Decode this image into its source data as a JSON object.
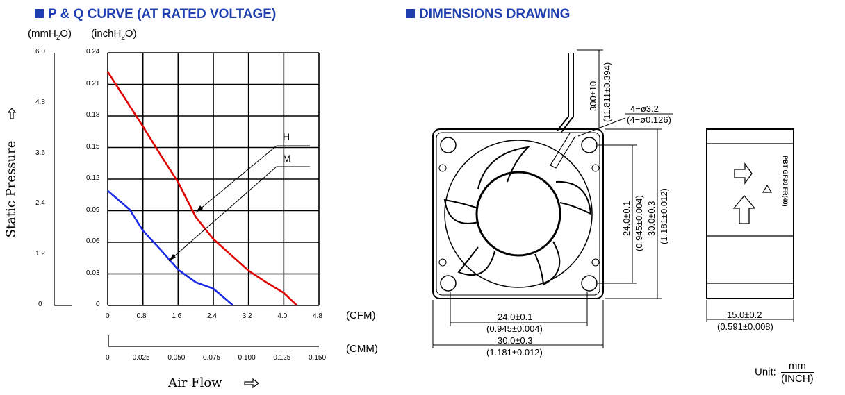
{
  "left_section": {
    "title": "P & Q CURVE (AT RATED VOLTAGE)",
    "unit_mm": "(mmH",
    "unit_mm_tail": "O)",
    "unit_inch": "(inchH",
    "unit_inch_tail": "O)",
    "sub2": "2"
  },
  "right_section": {
    "title": "DIMENSIONS DRAWING"
  },
  "chart_data": {
    "type": "line",
    "title": "P & Q CURVE (AT RATED VOLTAGE)",
    "xlabel": "Air Flow",
    "ylabel": "Static Pressure",
    "x_unit": "(CFM)",
    "x2_unit": "(CMM)",
    "x_ticks": [
      "0",
      "0.8",
      "1.6",
      "2.4",
      "3.2",
      "4.0",
      "4.8"
    ],
    "x2_ticks": [
      "0",
      "0.025",
      "0.050",
      "0.075",
      "0.100",
      "0.125",
      "0.150"
    ],
    "y_inch_ticks": [
      "0",
      "0.03",
      "0.06",
      "0.09",
      "0.12",
      "0.15",
      "0.18",
      "0.21",
      "0.24"
    ],
    "y_mm_ticks": [
      "0",
      "1.2",
      "2.4",
      "3.6",
      "4.8",
      "6.0"
    ],
    "xlim": [
      0,
      4.8
    ],
    "ylim": [
      0,
      0.24
    ],
    "grid": true,
    "series": [
      {
        "name": "H",
        "color": "#e00000",
        "x": [
          0,
          0.4,
          0.8,
          1.2,
          1.6,
          2.0,
          2.4,
          2.8,
          3.2,
          3.6,
          4.0,
          4.3
        ],
        "y": [
          0.222,
          0.196,
          0.17,
          0.143,
          0.117,
          0.084,
          0.063,
          0.048,
          0.033,
          0.022,
          0.012,
          0.0
        ]
      },
      {
        "name": "M",
        "color": "#1a2ae6",
        "x": [
          0,
          0.5,
          0.8,
          1.2,
          1.6,
          2.0,
          2.4,
          2.85
        ],
        "y": [
          0.109,
          0.091,
          0.071,
          0.053,
          0.034,
          0.022,
          0.016,
          0.0
        ]
      }
    ]
  },
  "dimensions": {
    "lead_length": "300±10",
    "lead_length_inch": "(11.811±0.394)",
    "hole_dia": "4−ø3.2",
    "hole_dia_inch": "(4−ø0.126)",
    "hole_pitch_v": "24.0±0.1",
    "hole_pitch_v_inch": "(0.945±0.004)",
    "size_v": "30.0±0.3",
    "size_v_inch": "(1.181±0.012)",
    "hole_pitch_h": "24.0±0.1",
    "hole_pitch_h_inch": "(0.945±0.004)",
    "size_h": "30.0±0.3",
    "size_h_inch": "(1.181±0.012)",
    "thickness": "15.0±0.2",
    "thickness_inch": "(0.591±0.008)",
    "label_text": "PBT-GF30 FR(40)",
    "unit_label": "Unit:",
    "unit_num": "mm",
    "unit_den": "(INCH)"
  }
}
